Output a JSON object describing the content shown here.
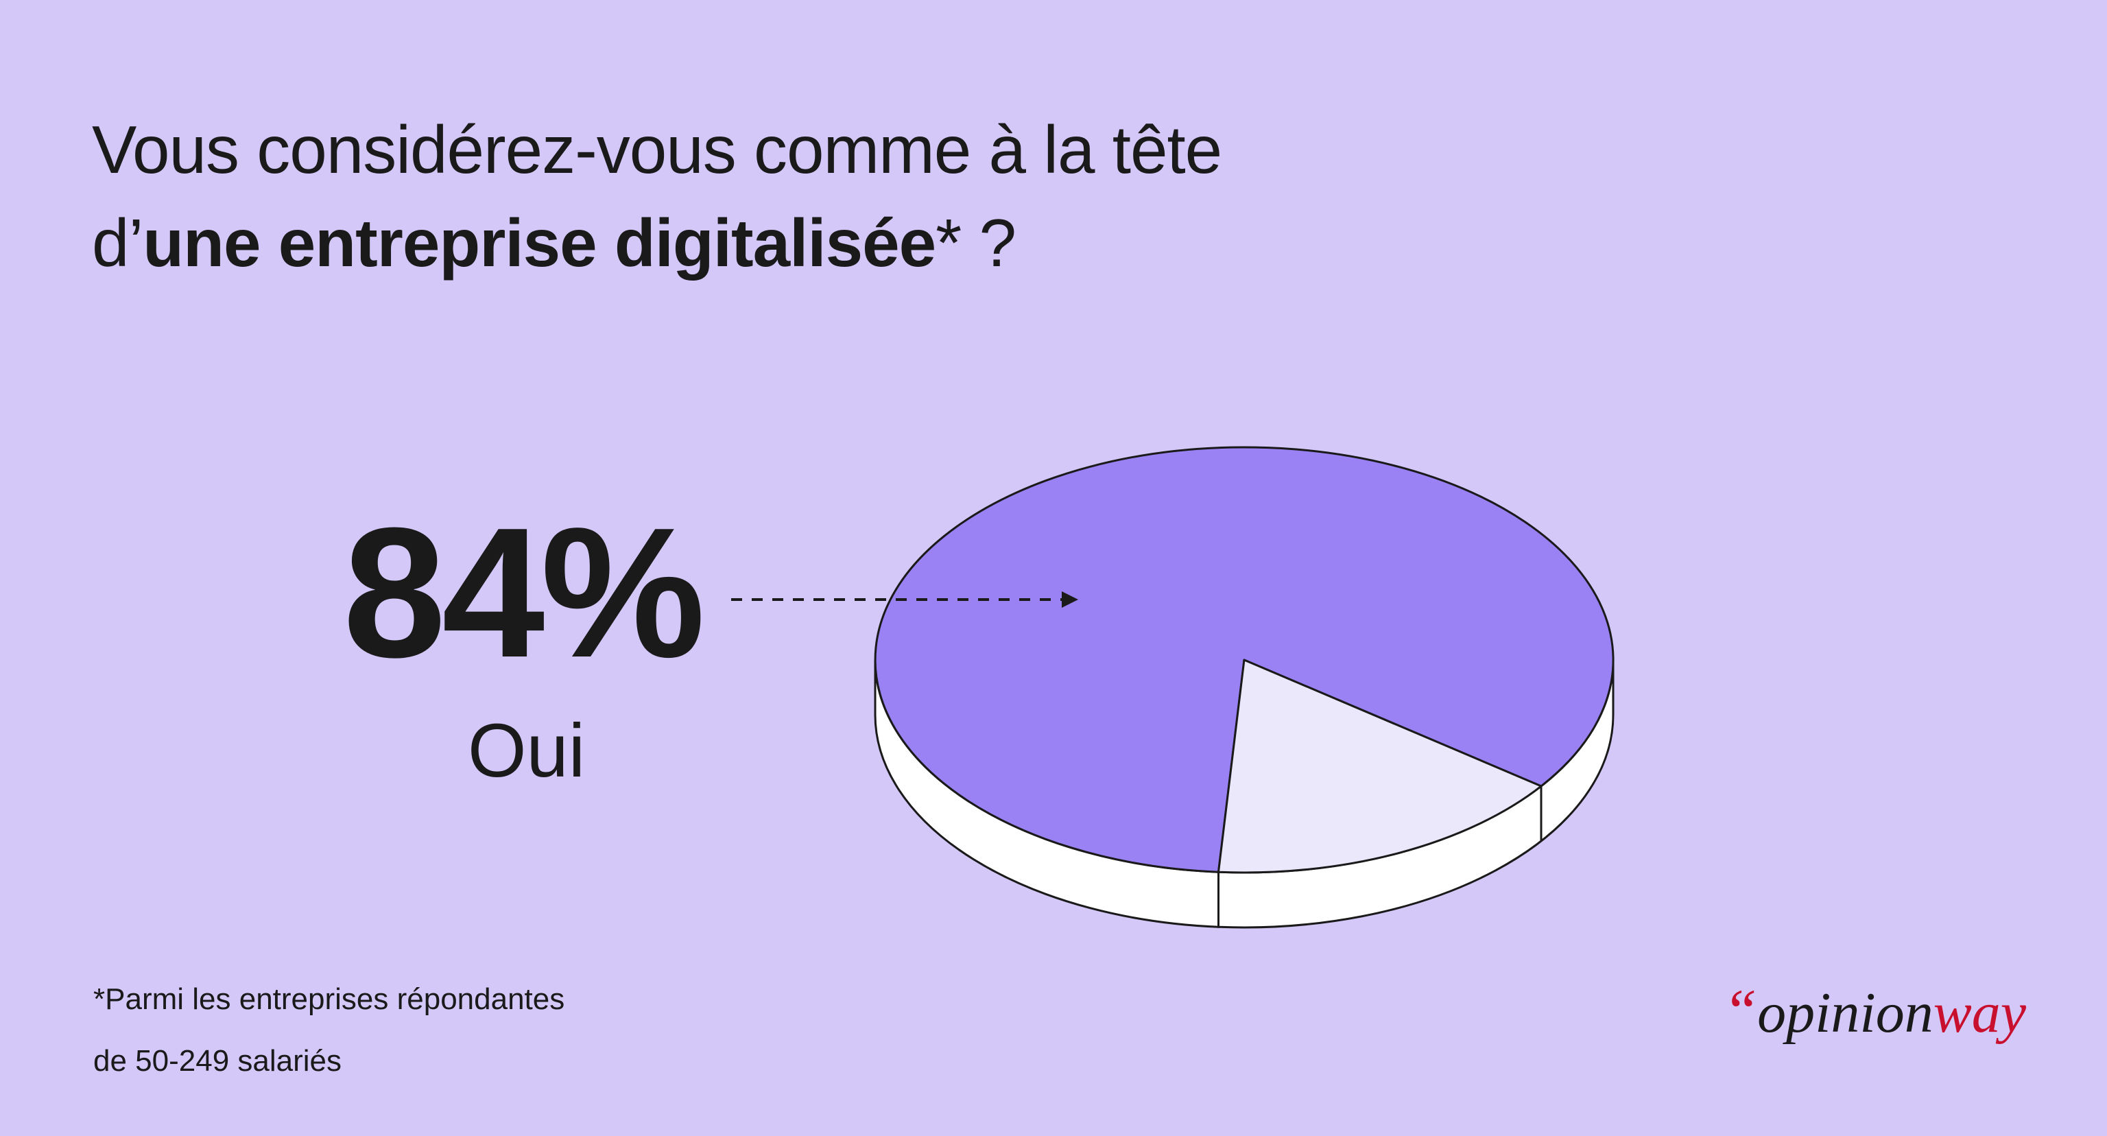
{
  "title": {
    "line1": "Vous considérez-vous comme à la tête",
    "line2_prefix": "d’",
    "line2_bold": "une entreprise digitalisée",
    "line2_suffix": "* ?"
  },
  "highlight": {
    "value": "84%",
    "label": "Oui"
  },
  "footnote": {
    "line1": "*Parmi les entreprises répondantes",
    "line2": "de 50-249 salariés"
  },
  "logo": {
    "quote": "“",
    "part1": "opinion",
    "part2": "way"
  },
  "colors": {
    "background": "#d4c8f8",
    "main_slice": "#9a82f4",
    "other_slice": "#ece8fc",
    "side": "#ffffff",
    "text": "#1a1a1a",
    "logo_accent": "#c8102e"
  },
  "chart_data": {
    "type": "pie",
    "slices": [
      {
        "label": "Oui",
        "value": 84
      },
      {
        "label": "",
        "value": 16
      }
    ],
    "title": "Vous considérez-vous comme à la tête d’une entreprise digitalisée* ?",
    "value_suffix": "%",
    "style": "3d"
  }
}
